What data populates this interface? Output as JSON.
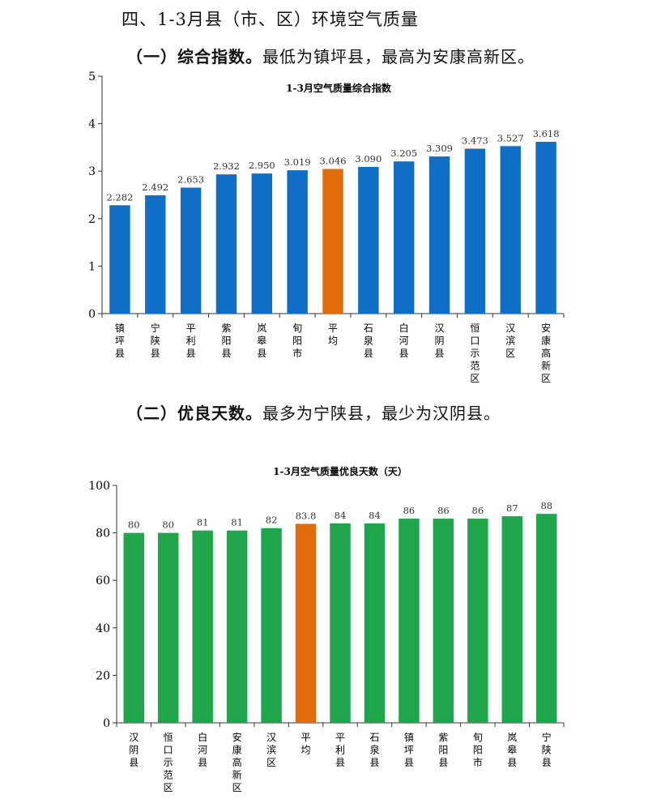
{
  "heading": "四、1-3月县（市、区）环境空气质量",
  "section1": {
    "label": "（一）综合指数。",
    "text": "最低为镇坪县，最高为安康高新区。"
  },
  "section2": {
    "label": "（二）优良天数。",
    "text": "最多为宁陕县，最少为汉阴县。"
  },
  "colors": {
    "bar1": "#0f6fc6",
    "bar2": "#1fa64a",
    "highlight": "#e36c0a"
  },
  "chart_data": [
    {
      "type": "bar",
      "title": "1-3月空气质量综合指数",
      "categories": [
        "镇坪县",
        "宁陕县",
        "平利县",
        "紫阳县",
        "岚皋县",
        "旬阳市",
        "平均",
        "石泉县",
        "白河县",
        "汉阴县",
        "恒口示范区",
        "汉滨区",
        "安康高新区"
      ],
      "values": [
        2.282,
        2.492,
        2.653,
        2.932,
        2.95,
        3.019,
        3.046,
        3.09,
        3.205,
        3.309,
        3.473,
        3.527,
        3.618
      ],
      "value_labels": [
        "2.282",
        "2.492",
        "2.653",
        "2.932",
        "2.950",
        "3.019",
        "3.046",
        "3.090",
        "3.205",
        "3.309",
        "3.473",
        "3.527",
        "3.618"
      ],
      "highlight": "平均",
      "ylim": [
        0,
        5
      ],
      "yticks": [
        "0",
        "1",
        "2",
        "3",
        "4",
        "5"
      ]
    },
    {
      "type": "bar",
      "title": "1-3月空气质量优良天数（天）",
      "categories": [
        "汉阴县",
        "恒口示范区",
        "白河县",
        "安康高新区",
        "汉滨区",
        "平均",
        "平利县",
        "石泉县",
        "镇坪县",
        "紫阳县",
        "旬阳市",
        "岚皋县",
        "宁陕县"
      ],
      "values": [
        80,
        80,
        81,
        81,
        82,
        83.8,
        84,
        84,
        86,
        86,
        86,
        87,
        88
      ],
      "value_labels": [
        "80",
        "80",
        "81",
        "81",
        "82",
        "83.8",
        "84",
        "84",
        "86",
        "86",
        "86",
        "87",
        "88"
      ],
      "highlight": "平均",
      "ylim": [
        0,
        100
      ],
      "yticks": [
        "0",
        "20",
        "40",
        "60",
        "80",
        "100"
      ]
    }
  ]
}
